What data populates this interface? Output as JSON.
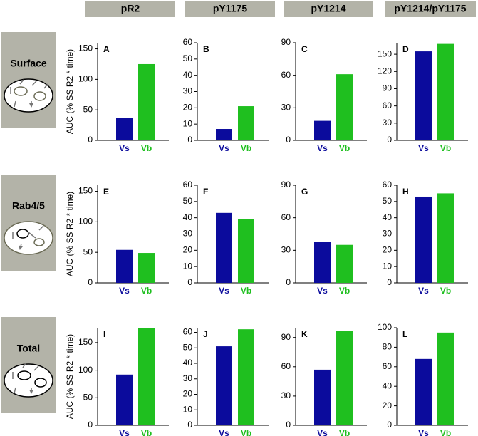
{
  "column_headers": [
    "pR2",
    "pY1175",
    "pY1214",
    "pY1214/pY1175"
  ],
  "row_labels": [
    "Surface",
    "Rab4/5",
    "Total"
  ],
  "chart_data": [
    {
      "type": "bar",
      "title": "A",
      "ylabel": "AUC (% SS R2 * time)",
      "categories": [
        "Vs",
        "Vb"
      ],
      "values": [
        37,
        125
      ],
      "colors": [
        "#0b0b9c",
        "#1fbf1f"
      ],
      "ylim": [
        0,
        160
      ],
      "yticks": [
        0,
        50,
        100,
        150
      ]
    },
    {
      "type": "bar",
      "title": "B",
      "categories": [
        "Vs",
        "Vb"
      ],
      "values": [
        7,
        21
      ],
      "colors": [
        "#0b0b9c",
        "#1fbf1f"
      ],
      "ylim": [
        0,
        60
      ],
      "yticks": [
        0,
        10,
        20,
        30,
        40,
        50,
        60
      ]
    },
    {
      "type": "bar",
      "title": "C",
      "categories": [
        "Vs",
        "Vb"
      ],
      "values": [
        18,
        61
      ],
      "colors": [
        "#0b0b9c",
        "#1fbf1f"
      ],
      "ylim": [
        0,
        90
      ],
      "yticks": [
        0,
        30,
        60,
        90
      ]
    },
    {
      "type": "bar",
      "title": "D",
      "categories": [
        "Vs",
        "Vb"
      ],
      "values": [
        155,
        168
      ],
      "colors": [
        "#0b0b9c",
        "#1fbf1f"
      ],
      "ylim": [
        0,
        170
      ],
      "yticks": [
        0,
        30,
        60,
        90,
        120,
        150
      ]
    },
    {
      "type": "bar",
      "title": "E",
      "ylabel": "AUC (% SS R2 * time)",
      "categories": [
        "Vs",
        "Vb"
      ],
      "values": [
        54,
        49
      ],
      "colors": [
        "#0b0b9c",
        "#1fbf1f"
      ],
      "ylim": [
        0,
        160
      ],
      "yticks": [
        0,
        50,
        100,
        150
      ]
    },
    {
      "type": "bar",
      "title": "F",
      "categories": [
        "Vs",
        "Vb"
      ],
      "values": [
        43,
        39
      ],
      "colors": [
        "#0b0b9c",
        "#1fbf1f"
      ],
      "ylim": [
        0,
        60
      ],
      "yticks": [
        0,
        10,
        20,
        30,
        40,
        50,
        60
      ]
    },
    {
      "type": "bar",
      "title": "G",
      "categories": [
        "Vs",
        "Vb"
      ],
      "values": [
        38,
        35
      ],
      "colors": [
        "#0b0b9c",
        "#1fbf1f"
      ],
      "ylim": [
        0,
        90
      ],
      "yticks": [
        0,
        30,
        60,
        90
      ]
    },
    {
      "type": "bar",
      "title": "H",
      "categories": [
        "Vs",
        "Vb"
      ],
      "values": [
        53,
        55
      ],
      "colors": [
        "#0b0b9c",
        "#1fbf1f"
      ],
      "ylim": [
        0,
        60
      ],
      "yticks": [
        0,
        10,
        20,
        30,
        40,
        50,
        60
      ]
    },
    {
      "type": "bar",
      "title": "I",
      "ylabel": "AUC (% SS R2 * time)",
      "categories": [
        "Vs",
        "Vb"
      ],
      "values": [
        92,
        177
      ],
      "colors": [
        "#0b0b9c",
        "#1fbf1f"
      ],
      "ylim": [
        0,
        177
      ],
      "yticks": [
        0,
        50,
        100,
        150
      ]
    },
    {
      "type": "bar",
      "title": "J",
      "categories": [
        "Vs",
        "Vb"
      ],
      "values": [
        51,
        62
      ],
      "colors": [
        "#0b0b9c",
        "#1fbf1f"
      ],
      "ylim": [
        0,
        63
      ],
      "yticks": [
        0,
        10,
        20,
        30,
        40,
        50,
        60
      ]
    },
    {
      "type": "bar",
      "title": "K",
      "categories": [
        "Vs",
        "Vb"
      ],
      "values": [
        57,
        97
      ],
      "colors": [
        "#0b0b9c",
        "#1fbf1f"
      ],
      "ylim": [
        0,
        100
      ],
      "yticks": [
        0,
        30,
        60,
        90
      ]
    },
    {
      "type": "bar",
      "title": "L",
      "categories": [
        "Vs",
        "Vb"
      ],
      "values": [
        68,
        95
      ],
      "colors": [
        "#0b0b9c",
        "#1fbf1f"
      ],
      "ylim": [
        0,
        100
      ],
      "yticks": [
        0,
        20,
        40,
        60,
        80,
        100
      ]
    }
  ]
}
